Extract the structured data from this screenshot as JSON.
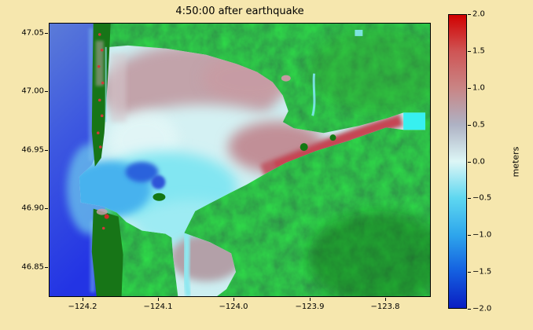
{
  "figure": {
    "background_color": "#f6e7ae",
    "land_color": "#117811",
    "ocean_color": "#2d45e2"
  },
  "chart_data": {
    "type": "heatmap",
    "title": "4:50:00 after earthquake",
    "xlabel": "",
    "ylabel": "",
    "x_ticks": [
      -124.2,
      -124.1,
      -124.0,
      -123.9,
      -123.8
    ],
    "x_tick_labels": [
      "−124.2",
      "−124.1",
      "−124.0",
      "−123.9",
      "−123.8"
    ],
    "y_ticks": [
      47.05,
      47.0,
      46.95,
      46.9,
      46.85
    ],
    "y_tick_labels": [
      "47.05",
      "47.00",
      "46.95",
      "46.90",
      "46.85"
    ],
    "xlim": [
      -124.245,
      -123.74
    ],
    "ylim": [
      46.824,
      47.059
    ],
    "grid": false,
    "legend": null,
    "colorbar": {
      "label": "meters",
      "vmin": -2.0,
      "vmax": 2.0,
      "ticks": [
        2.0,
        1.5,
        1.0,
        0.5,
        0.0,
        -0.5,
        -1.0,
        -1.5,
        -2.0
      ],
      "tick_labels": [
        "2.0",
        "1.5",
        "1.0",
        "0.5",
        "0.0",
        "−0.5",
        "−1.0",
        "−1.5",
        "−2.0"
      ],
      "gradient_stops": [
        {
          "value": 2.0,
          "color": "#d10000"
        },
        {
          "value": 1.5,
          "color": "#cf5555"
        },
        {
          "value": 1.0,
          "color": "#c98585"
        },
        {
          "value": 0.5,
          "color": "#aeb2c4"
        },
        {
          "value": 0.0,
          "color": "#ddf6f6"
        },
        {
          "value": -0.5,
          "color": "#5ed7f0"
        },
        {
          "value": -1.0,
          "color": "#2ea6ec"
        },
        {
          "value": -1.5,
          "color": "#145fe0"
        },
        {
          "value": -2.0,
          "color": "#0a1ec2"
        }
      ]
    },
    "description": "Tsunami water-surface elevation snapshot over an estuary: blue ocean at left, green terrain, cyan drawdown inside the bay, red-pink positive wave crest in the eastern river channel"
  }
}
